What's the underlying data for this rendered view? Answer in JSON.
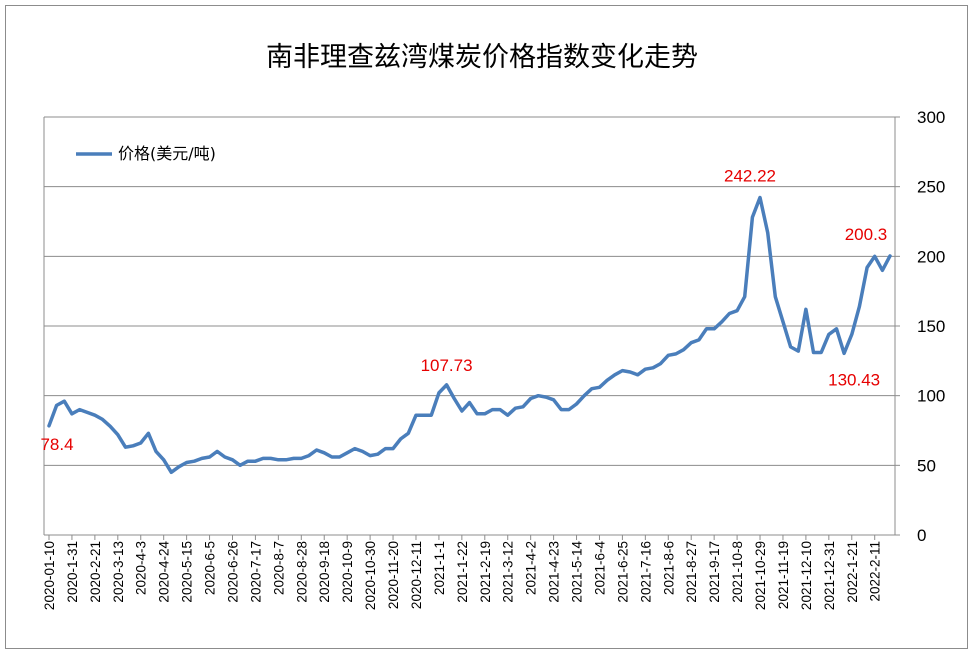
{
  "chart_data": {
    "type": "line",
    "title": "南非理查兹湾煤炭价格指数变化走势",
    "ylim": [
      0,
      300
    ],
    "yticks": [
      0,
      50,
      100,
      150,
      200,
      250,
      300
    ],
    "y_axis_side": "right",
    "grid": "horizontal",
    "legend_position": "top-left",
    "line_color": "#4a7ebb",
    "annotation_color": "#e60000",
    "x_tick_labels": [
      "2020-01-10",
      "2020-1-31",
      "2020-2-21",
      "2020-3-13",
      "2020-4-3",
      "2020-4-24",
      "2020-5-15",
      "2020-6-5",
      "2020-6-26",
      "2020-7-17",
      "2020-8-7",
      "2020-8-28",
      "2020-9-18",
      "2020-10-9",
      "2020-10-30",
      "2020-11-20",
      "2020-12-11",
      "2021-1-1",
      "2021-1-22",
      "2021-2-19",
      "2021-3-12",
      "2021-4-2",
      "2021-4-23",
      "2021-5-14",
      "2021-6-4",
      "2021-6-25",
      "2021-7-16",
      "2021-8-6",
      "2021-8-27",
      "2021-9-17",
      "2021-10-8",
      "2021-10-29",
      "2021-11-19",
      "2021-12-10",
      "2021-12-31",
      "2022-1-21",
      "2022-2-11"
    ],
    "series": [
      {
        "name": "价格(美元/吨)",
        "values": [
          78.4,
          93,
          96,
          87,
          90,
          88,
          86,
          83,
          78,
          72,
          63,
          64,
          66,
          73,
          60,
          54,
          45,
          49,
          52,
          53,
          55,
          56,
          60,
          56,
          54,
          50,
          53,
          53,
          55,
          55,
          54,
          54,
          55,
          55,
          57,
          61,
          59,
          56,
          56,
          59,
          62,
          60,
          57,
          58,
          62,
          62,
          69,
          73,
          86,
          86,
          86,
          102,
          107.73,
          98,
          89,
          95,
          87,
          87,
          90,
          90,
          86,
          91,
          92,
          98,
          100,
          99,
          97,
          90,
          90,
          94,
          100,
          105,
          106,
          111,
          115,
          118,
          117,
          115,
          119,
          120,
          123,
          129,
          130,
          133,
          138,
          140,
          148,
          148,
          153,
          159,
          161,
          171,
          228,
          242.22,
          217,
          171,
          153,
          135,
          132,
          162,
          131,
          131,
          144,
          148,
          130.43,
          144,
          164,
          192,
          200,
          190,
          200.3
        ]
      }
    ],
    "annotations": [
      {
        "label": "78.4",
        "index": 0
      },
      {
        "label": "107.73",
        "index": 52
      },
      {
        "label": "242.22",
        "index": 93
      },
      {
        "label": "130.43",
        "index": 104
      },
      {
        "label": "200.3",
        "index": 110
      }
    ]
  }
}
